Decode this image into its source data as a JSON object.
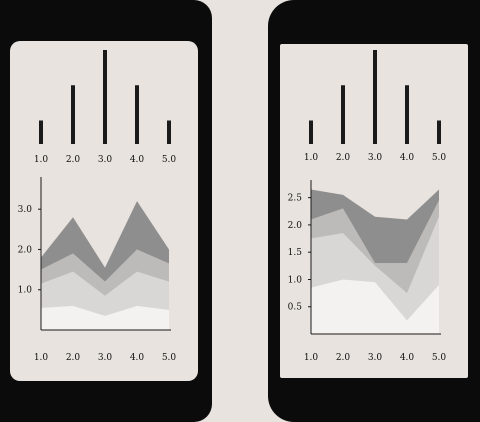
{
  "colors": {
    "background": "#e8e3de",
    "phone": "#0b0b0b",
    "bar": "#1a1a1a",
    "axis": "#1a1a1a",
    "layers": [
      "#f4f2f1",
      "#d9d7d6",
      "#bdbbba",
      "#8f8e8e"
    ]
  },
  "chart_data": [
    {
      "type": "bar",
      "categories": [
        "1.0",
        "2.0",
        "3.0",
        "4.0",
        "5.0"
      ],
      "values": [
        0.8,
        2.0,
        3.2,
        2.0,
        0.8
      ],
      "ylim": [
        0,
        3.2
      ],
      "xlabel": "",
      "ylabel": "",
      "title": ""
    },
    {
      "type": "area",
      "stacked": true,
      "x": [
        1,
        2,
        3,
        4,
        5
      ],
      "x_tick_labels": [
        "1.0",
        "2.0",
        "3.0",
        "4.0",
        "5.0"
      ],
      "y_ticks": [
        1.0,
        2.0,
        3.0
      ],
      "y_tick_labels": [
        "1.0",
        "2.0",
        "3.0"
      ],
      "ylim": [
        0,
        3.7
      ],
      "series": [
        {
          "values": [
            0.55,
            0.6,
            0.35,
            0.6,
            0.5
          ]
        },
        {
          "values": [
            0.6,
            0.85,
            0.5,
            0.85,
            0.7
          ]
        },
        {
          "values": [
            0.35,
            0.45,
            0.35,
            0.55,
            0.45
          ]
        },
        {
          "values": [
            0.3,
            0.9,
            0.35,
            1.2,
            0.35
          ]
        }
      ]
    },
    {
      "type": "bar",
      "categories": [
        "1.0",
        "2.0",
        "3.0",
        "4.0",
        "5.0"
      ],
      "values": [
        0.8,
        2.0,
        3.2,
        2.0,
        0.8
      ],
      "ylim": [
        0,
        3.2
      ],
      "xlabel": "",
      "ylabel": "",
      "title": ""
    },
    {
      "type": "area",
      "stacked": true,
      "x": [
        1,
        2,
        3,
        4,
        5
      ],
      "x_tick_labels": [
        "1.0",
        "2.0",
        "3.0",
        "4.0",
        "5.0"
      ],
      "y_ticks": [
        0.5,
        1.0,
        1.5,
        2.0,
        2.5
      ],
      "y_tick_labels": [
        "0.5",
        "1.0",
        "1.5",
        "2.0",
        "2.5"
      ],
      "ylim": [
        0,
        2.75
      ],
      "series": [
        {
          "values": [
            0.85,
            1.0,
            0.95,
            0.25,
            0.9
          ]
        },
        {
          "values": [
            0.9,
            0.85,
            0.3,
            0.5,
            1.25
          ]
        },
        {
          "values": [
            0.35,
            0.45,
            0.05,
            0.55,
            0.3
          ]
        },
        {
          "values": [
            0.55,
            0.25,
            0.85,
            0.8,
            0.2
          ]
        }
      ]
    }
  ]
}
